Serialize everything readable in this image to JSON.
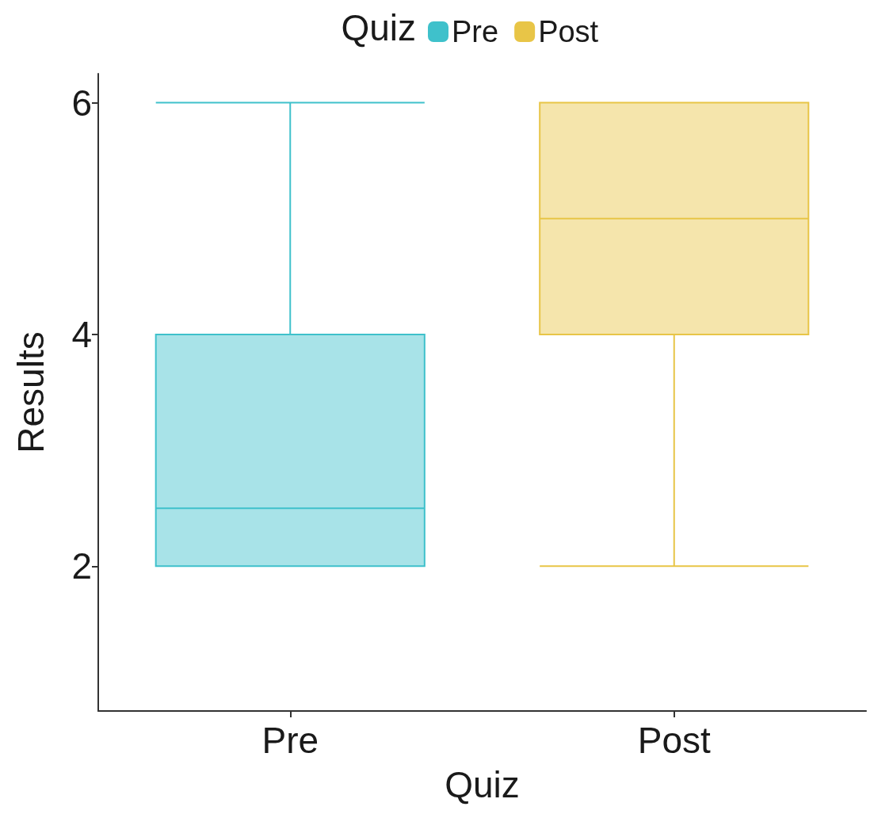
{
  "chart_data": {
    "type": "box",
    "xlabel": "Quiz",
    "ylabel": "Results",
    "legend_title": "Quiz",
    "legend": "top",
    "grid": false,
    "categories": [
      "Pre",
      "Post"
    ],
    "ylim": [
      0.75,
      6.25
    ],
    "yticks": [
      2,
      4,
      6
    ],
    "series": [
      {
        "name": "Pre",
        "color": "#3fc1cb",
        "boxes": [
          {
            "low": 2,
            "q1": 2,
            "median": 2.5,
            "q3": 4,
            "high": 6
          },
          null
        ]
      },
      {
        "name": "Post",
        "color": "#e8c547",
        "boxes": [
          null,
          {
            "low": 2,
            "q1": 4,
            "median": 5,
            "q3": 6,
            "high": 6
          }
        ]
      }
    ]
  }
}
